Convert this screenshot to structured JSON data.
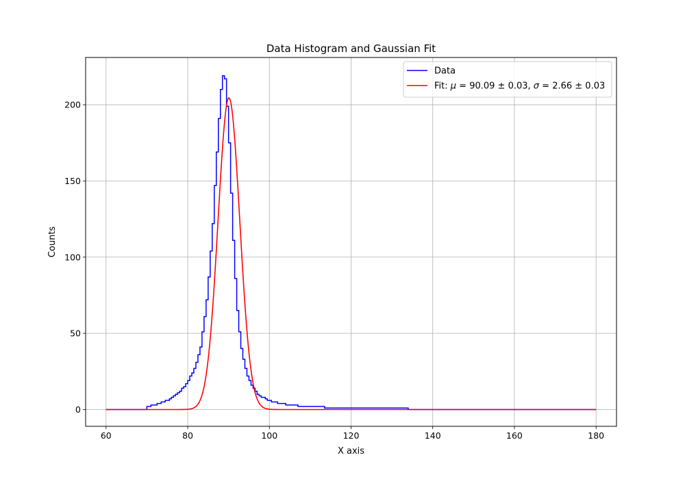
{
  "chart_data": {
    "type": "line",
    "title": "Data Histogram and Gaussian Fit",
    "xlabel": "X axis",
    "ylabel": "Counts",
    "xlim": [
      55,
      185
    ],
    "ylim": [
      -11,
      231
    ],
    "xticks": [
      "60",
      "80",
      "100",
      "120",
      "140",
      "160",
      "180"
    ],
    "yticks": [
      "0",
      "50",
      "100",
      "150",
      "200"
    ],
    "grid": true,
    "legend_position": "top-right",
    "series": [
      {
        "name": "Data",
        "style": "step",
        "color": "#0000ff",
        "bin_width": 0.5,
        "x_start": 60,
        "x_end": 180,
        "data_start": 70,
        "data_end": 134,
        "counts": [
          2,
          2,
          3,
          3,
          3,
          4,
          4,
          5,
          5,
          6,
          6,
          7,
          8,
          9,
          10,
          11,
          12,
          14,
          15,
          17,
          19,
          22,
          24,
          27,
          31,
          36,
          41,
          51,
          61,
          72,
          87,
          104,
          122,
          147,
          169,
          191,
          210,
          219,
          217,
          199,
          175,
          142,
          111,
          86,
          65,
          51,
          40,
          33,
          27,
          22,
          19,
          16,
          14,
          12,
          10,
          9,
          8,
          8,
          7,
          6,
          6,
          5,
          5,
          5,
          4,
          4,
          4,
          4,
          3,
          3,
          3,
          3,
          3,
          3,
          2,
          2,
          2,
          2,
          2,
          2,
          2,
          2,
          2,
          2,
          2,
          2,
          2,
          1,
          1,
          1,
          1,
          1,
          1,
          1,
          1,
          1,
          1,
          1,
          1,
          1,
          1,
          1,
          1,
          1,
          1,
          1,
          1,
          1,
          1,
          1,
          1,
          1,
          1,
          1,
          1,
          1,
          1,
          1,
          1,
          1,
          1,
          1,
          1,
          1,
          1,
          1,
          1,
          1
        ]
      },
      {
        "name": "Fit: μ = 90.09 ± 0.03, σ = 2.66 ± 0.03",
        "legend_parts": {
          "prefix": "Fit: ",
          "mu": "μ",
          "mu_value": " = 90.09 ± 0.03, ",
          "sigma": "σ",
          "sigma_value": " = 2.66 ± 0.03"
        },
        "style": "line",
        "color": "#ff0000",
        "function": "gaussian",
        "amplitude": 204.5,
        "mu": 90.09,
        "sigma": 2.66,
        "x_range": [
          60,
          180
        ]
      }
    ]
  }
}
